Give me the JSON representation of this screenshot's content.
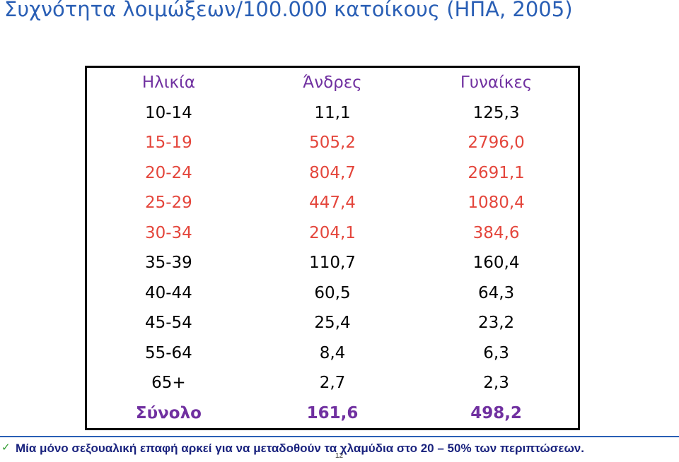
{
  "title": "Συχνότητα λοιμώξεων/100.000 κατοίκους (ΗΠΑ, 2005)",
  "table": {
    "header": [
      "Ηλικία",
      "Άνδρες",
      "Γυναίκες"
    ],
    "rows": [
      [
        "10-14",
        "11,1",
        "125,3"
      ],
      [
        "15-19",
        "505,2",
        "2796,0"
      ],
      [
        "20-24",
        "804,7",
        "2691,1"
      ],
      [
        "25-29",
        "447,4",
        "1080,4"
      ],
      [
        "30-34",
        "204,1",
        "384,6"
      ],
      [
        "35-39",
        "110,7",
        "160,4"
      ],
      [
        "40-44",
        "60,5",
        "64,3"
      ],
      [
        "45-54",
        "25,4",
        "23,2"
      ],
      [
        "55-64",
        "8,4",
        "6,3"
      ],
      [
        "65+",
        "2,7",
        "2,3"
      ]
    ],
    "total": [
      "Σύνολο",
      "161,6",
      "498,2"
    ]
  },
  "footnote": "Μία μόνο σεξουαλική επαφή αρκεί για να μεταδοθούν τα χλαμύδια στο 20 – 50% των περιπτώσεων.",
  "page_number": "12"
}
